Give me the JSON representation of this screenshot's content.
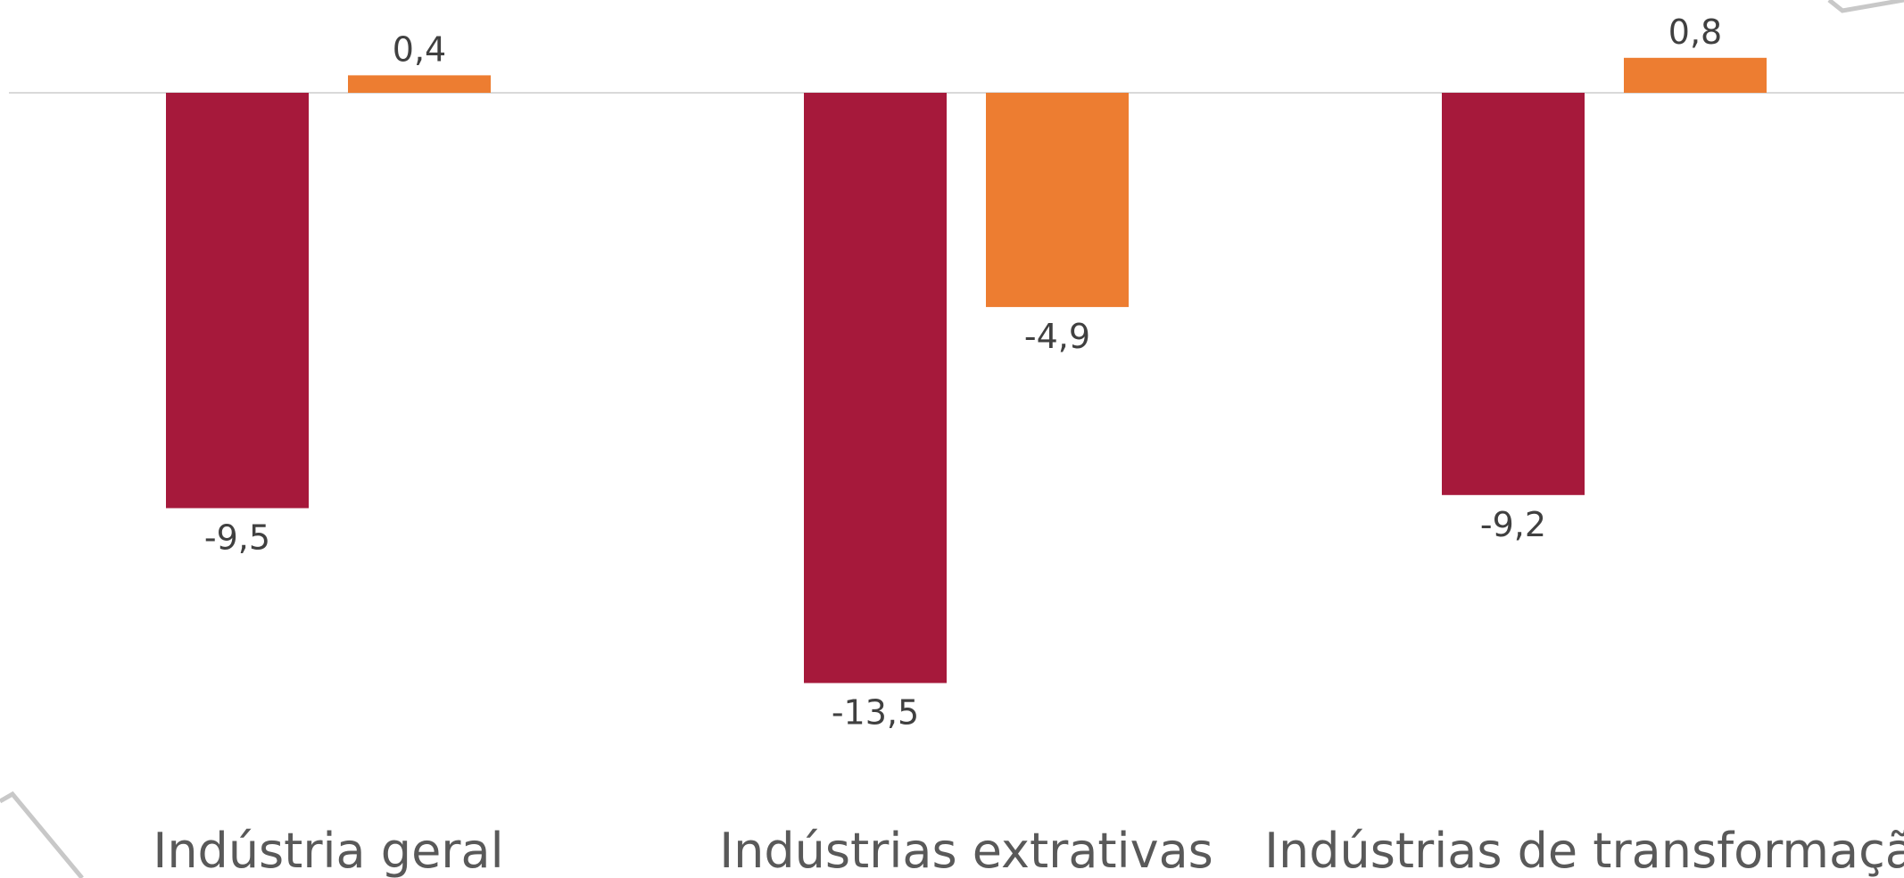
{
  "chart_data": {
    "type": "bar",
    "categories": [
      "Indústria geral",
      "Indústrias extrativas",
      "Indústrias de transformação"
    ],
    "series": [
      {
        "values": [
          -9.5,
          -13.5,
          -9.2
        ],
        "color": "#A6193B",
        "labels": [
          "-9,5",
          "-13,5",
          "-9,2"
        ]
      },
      {
        "values": [
          0.4,
          -4.9,
          0.8
        ],
        "color": "#ED7D31",
        "labels": [
          "0,4",
          "-4,9",
          "0,8"
        ]
      }
    ],
    "title": "",
    "xlabel": "",
    "ylabel": "",
    "ylim": [
      -13.5,
      0.8
    ],
    "grid": false,
    "legend": "none"
  }
}
